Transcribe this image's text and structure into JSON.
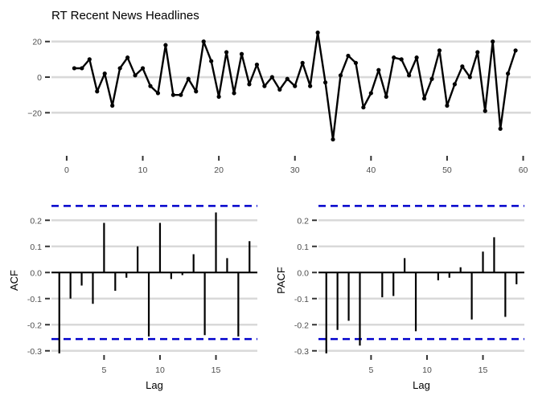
{
  "chart_data": [
    {
      "type": "line",
      "title": "RT Recent News Headlines",
      "xlabel": "",
      "ylabel": "",
      "xlim": [
        -2,
        61
      ],
      "ylim": [
        -37,
        28
      ],
      "x_ticks": [
        0,
        10,
        20,
        30,
        40,
        50,
        60
      ],
      "y_ticks": [
        -20,
        0,
        20
      ],
      "grid": true,
      "x": [
        1,
        2,
        3,
        4,
        5,
        6,
        7,
        8,
        9,
        10,
        11,
        12,
        13,
        14,
        15,
        16,
        17,
        18,
        19,
        20,
        21,
        22,
        23,
        24,
        25,
        26,
        27,
        28,
        29,
        30,
        31,
        32,
        33,
        34,
        35,
        36,
        37,
        38,
        39,
        40,
        41,
        42,
        43,
        44,
        45,
        46,
        47,
        48,
        49,
        50,
        51,
        52,
        53,
        54,
        55,
        56,
        57,
        58,
        59
      ],
      "values": [
        5,
        5,
        10,
        -8,
        2,
        -16,
        5,
        11,
        1,
        5,
        -5,
        -9,
        18,
        -10,
        -10,
        -1,
        -8,
        20,
        9,
        -11,
        14,
        -9,
        13,
        -4,
        7,
        -5,
        0,
        -7,
        -1,
        -5,
        8,
        -5,
        25,
        -3,
        -35,
        1,
        12,
        8,
        -17,
        -9,
        4,
        -11,
        11,
        10,
        1,
        11,
        -12,
        -1,
        15,
        -16,
        -4,
        6,
        0,
        14,
        -19,
        20,
        -29,
        2,
        15
      ]
    },
    {
      "type": "bar",
      "title": "",
      "xlabel": "Lag",
      "ylabel": "ACF",
      "xlim": [
        0.3,
        18.7
      ],
      "ylim": [
        -0.31,
        0.25
      ],
      "x_ticks": [
        5,
        10,
        15
      ],
      "y_ticks": [
        -0.3,
        -0.2,
        -0.1,
        0.0,
        0.1,
        0.2
      ],
      "y_tick_labels": [
        "-0.3",
        "-0.2",
        "-0.1",
        "0.0",
        "0.1",
        "0.2"
      ],
      "confidence_bound": 0.255,
      "lags": [
        1,
        2,
        3,
        4,
        5,
        6,
        7,
        8,
        9,
        10,
        11,
        12,
        13,
        14,
        15,
        16,
        17,
        18
      ],
      "values": [
        -0.31,
        -0.1,
        -0.05,
        -0.12,
        0.19,
        -0.07,
        -0.02,
        0.1,
        -0.245,
        0.19,
        -0.025,
        -0.01,
        0.07,
        -0.24,
        0.23,
        0.055,
        -0.245,
        0.12
      ]
    },
    {
      "type": "bar",
      "title": "",
      "xlabel": "Lag",
      "ylabel": "PACF",
      "xlim": [
        0.3,
        18.7
      ],
      "ylim": [
        -0.31,
        0.25
      ],
      "x_ticks": [
        5,
        10,
        15
      ],
      "y_ticks": [
        -0.3,
        -0.2,
        -0.1,
        0.0,
        0.1,
        0.2
      ],
      "y_tick_labels": [
        "-0.3",
        "-0.2",
        "-0.1",
        "0.0",
        "0.1",
        "0.2"
      ],
      "confidence_bound": 0.255,
      "lags": [
        1,
        2,
        3,
        4,
        5,
        6,
        7,
        8,
        9,
        10,
        11,
        12,
        13,
        14,
        15,
        16,
        17,
        18
      ],
      "values": [
        -0.31,
        -0.22,
        -0.185,
        -0.28,
        0.0,
        -0.095,
        -0.09,
        0.055,
        -0.225,
        0.0,
        -0.03,
        -0.02,
        0.02,
        -0.18,
        0.08,
        0.135,
        -0.17,
        -0.045
      ]
    }
  ]
}
